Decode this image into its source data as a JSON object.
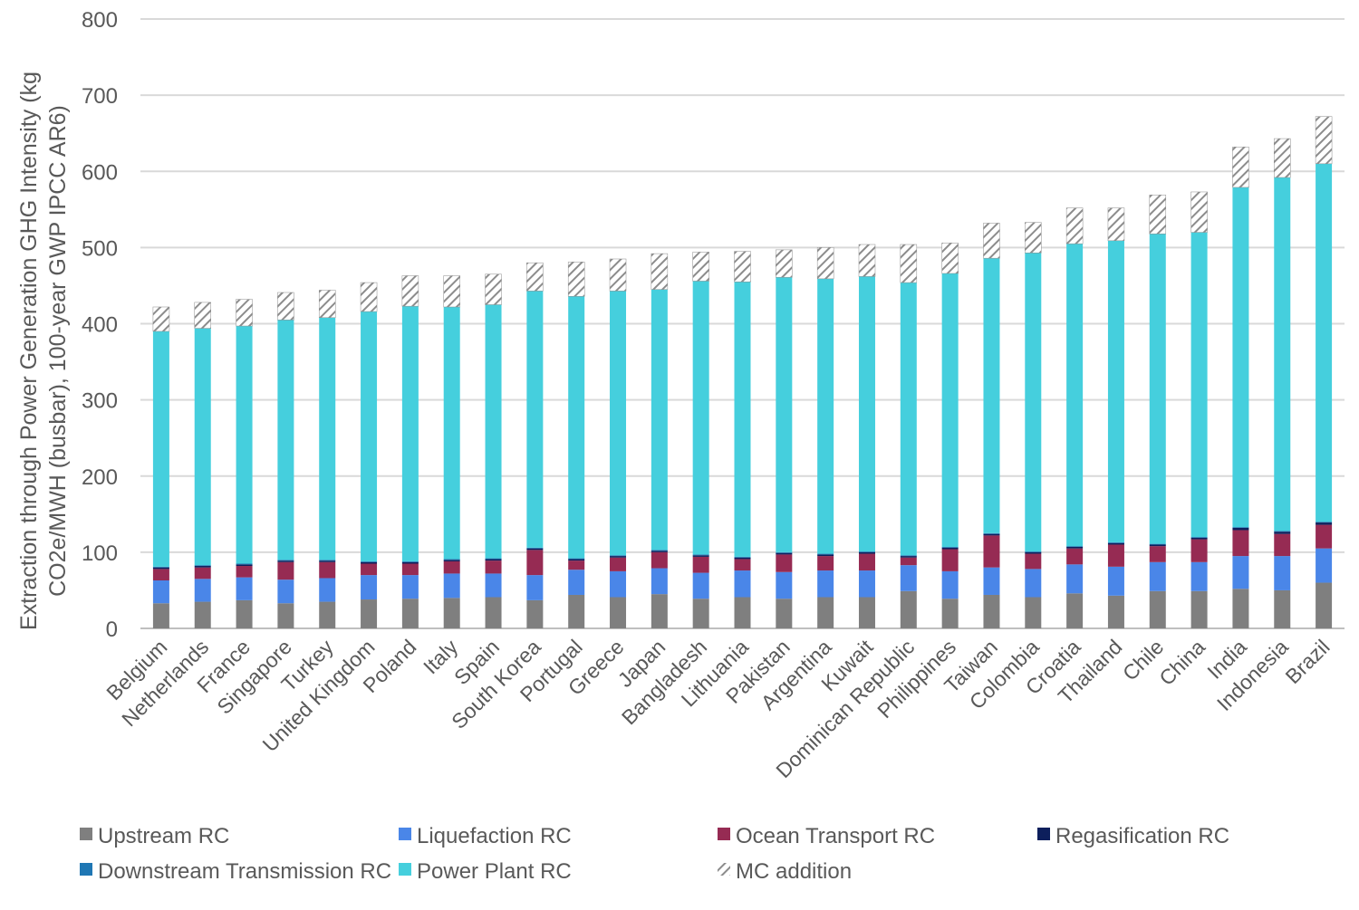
{
  "chart_data": {
    "type": "bar",
    "stacked": true,
    "ylabel_lines": [
      "Extraction through Power Generation GHG Intensity (kg",
      "CO2e/MWH (busbar), 100-year GWP IPCC AR6)"
    ],
    "ylim": [
      0,
      800
    ],
    "yticks": [
      0,
      100,
      200,
      300,
      400,
      500,
      600,
      700,
      800
    ],
    "grid": true,
    "legend_position": "bottom",
    "categories": [
      "Belgium",
      "Netherlands",
      "France",
      "Singapore",
      "Turkey",
      "United Kingdom",
      "Poland",
      "Italy",
      "Spain",
      "South Korea",
      "Portugal",
      "Greece",
      "Japan",
      "Bangladesh",
      "Lithuania",
      "Pakistan",
      "Argentina",
      "Kuwait",
      "Dominican Republic",
      "Philippines",
      "Taiwan",
      "Colombia",
      "Croatia",
      "Thailand",
      "Chile",
      "China",
      "India",
      "Indonesia",
      "Brazil"
    ],
    "series": [
      {
        "name": "Upstream RC",
        "color": "#7f7f7f",
        "pattern": "solid",
        "values": [
          33,
          35,
          37,
          33,
          35,
          38,
          39,
          40,
          41,
          37,
          44,
          41,
          45,
          39,
          41,
          39,
          41,
          41,
          49,
          39,
          44,
          41,
          46,
          43,
          49,
          49,
          52,
          50,
          60
        ]
      },
      {
        "name": "Liquefaction RC",
        "color": "#4a86e8",
        "pattern": "solid",
        "values": [
          30,
          30,
          30,
          31,
          31,
          32,
          31,
          32,
          31,
          33,
          33,
          34,
          34,
          34,
          35,
          35,
          35,
          35,
          34,
          36,
          36,
          37,
          38,
          38,
          38,
          38,
          43,
          45,
          45
        ]
      },
      {
        "name": "Ocean Transport RC",
        "color": "#962b53",
        "pattern": "solid",
        "values": [
          15,
          15,
          15,
          23,
          21,
          15,
          15,
          16,
          17,
          33,
          12,
          18,
          21,
          21,
          15,
          23,
          19,
          22,
          10,
          29,
          42,
          20,
          21,
          29,
          21,
          30,
          34,
          29,
          31
        ]
      },
      {
        "name": "Regasification RC",
        "color": "#0d1f5c",
        "pattern": "solid",
        "values": [
          2,
          2,
          2,
          2,
          2,
          2,
          2,
          2,
          2,
          2,
          2,
          2,
          2,
          2,
          2,
          2,
          2,
          2,
          2,
          2,
          2,
          2,
          2,
          2,
          2,
          2,
          3,
          3,
          3
        ]
      },
      {
        "name": "Downstream Transmission RC",
        "color": "#1f77b4",
        "pattern": "solid",
        "values": [
          1,
          1,
          1,
          1,
          1,
          1,
          1,
          1,
          1,
          1,
          1,
          1,
          1,
          1,
          1,
          1,
          1,
          1,
          1,
          1,
          1,
          1,
          1,
          1,
          1,
          1,
          1,
          1,
          1
        ]
      },
      {
        "name": "Power Plant RC",
        "color": "#45cfdd",
        "pattern": "solid",
        "values": [
          309,
          311,
          312,
          315,
          318,
          328,
          335,
          331,
          333,
          337,
          344,
          347,
          342,
          359,
          361,
          361,
          361,
          361,
          358,
          359,
          361,
          392,
          397,
          396,
          407,
          400,
          446,
          464,
          470
        ]
      },
      {
        "name": "MC addition",
        "color": "#8c8c8c",
        "pattern": "hatch",
        "values": [
          32,
          34,
          35,
          36,
          36,
          38,
          40,
          41,
          40,
          37,
          45,
          42,
          47,
          38,
          40,
          36,
          41,
          42,
          50,
          40,
          46,
          40,
          47,
          43,
          51,
          53,
          53,
          51,
          62
        ]
      }
    ]
  }
}
